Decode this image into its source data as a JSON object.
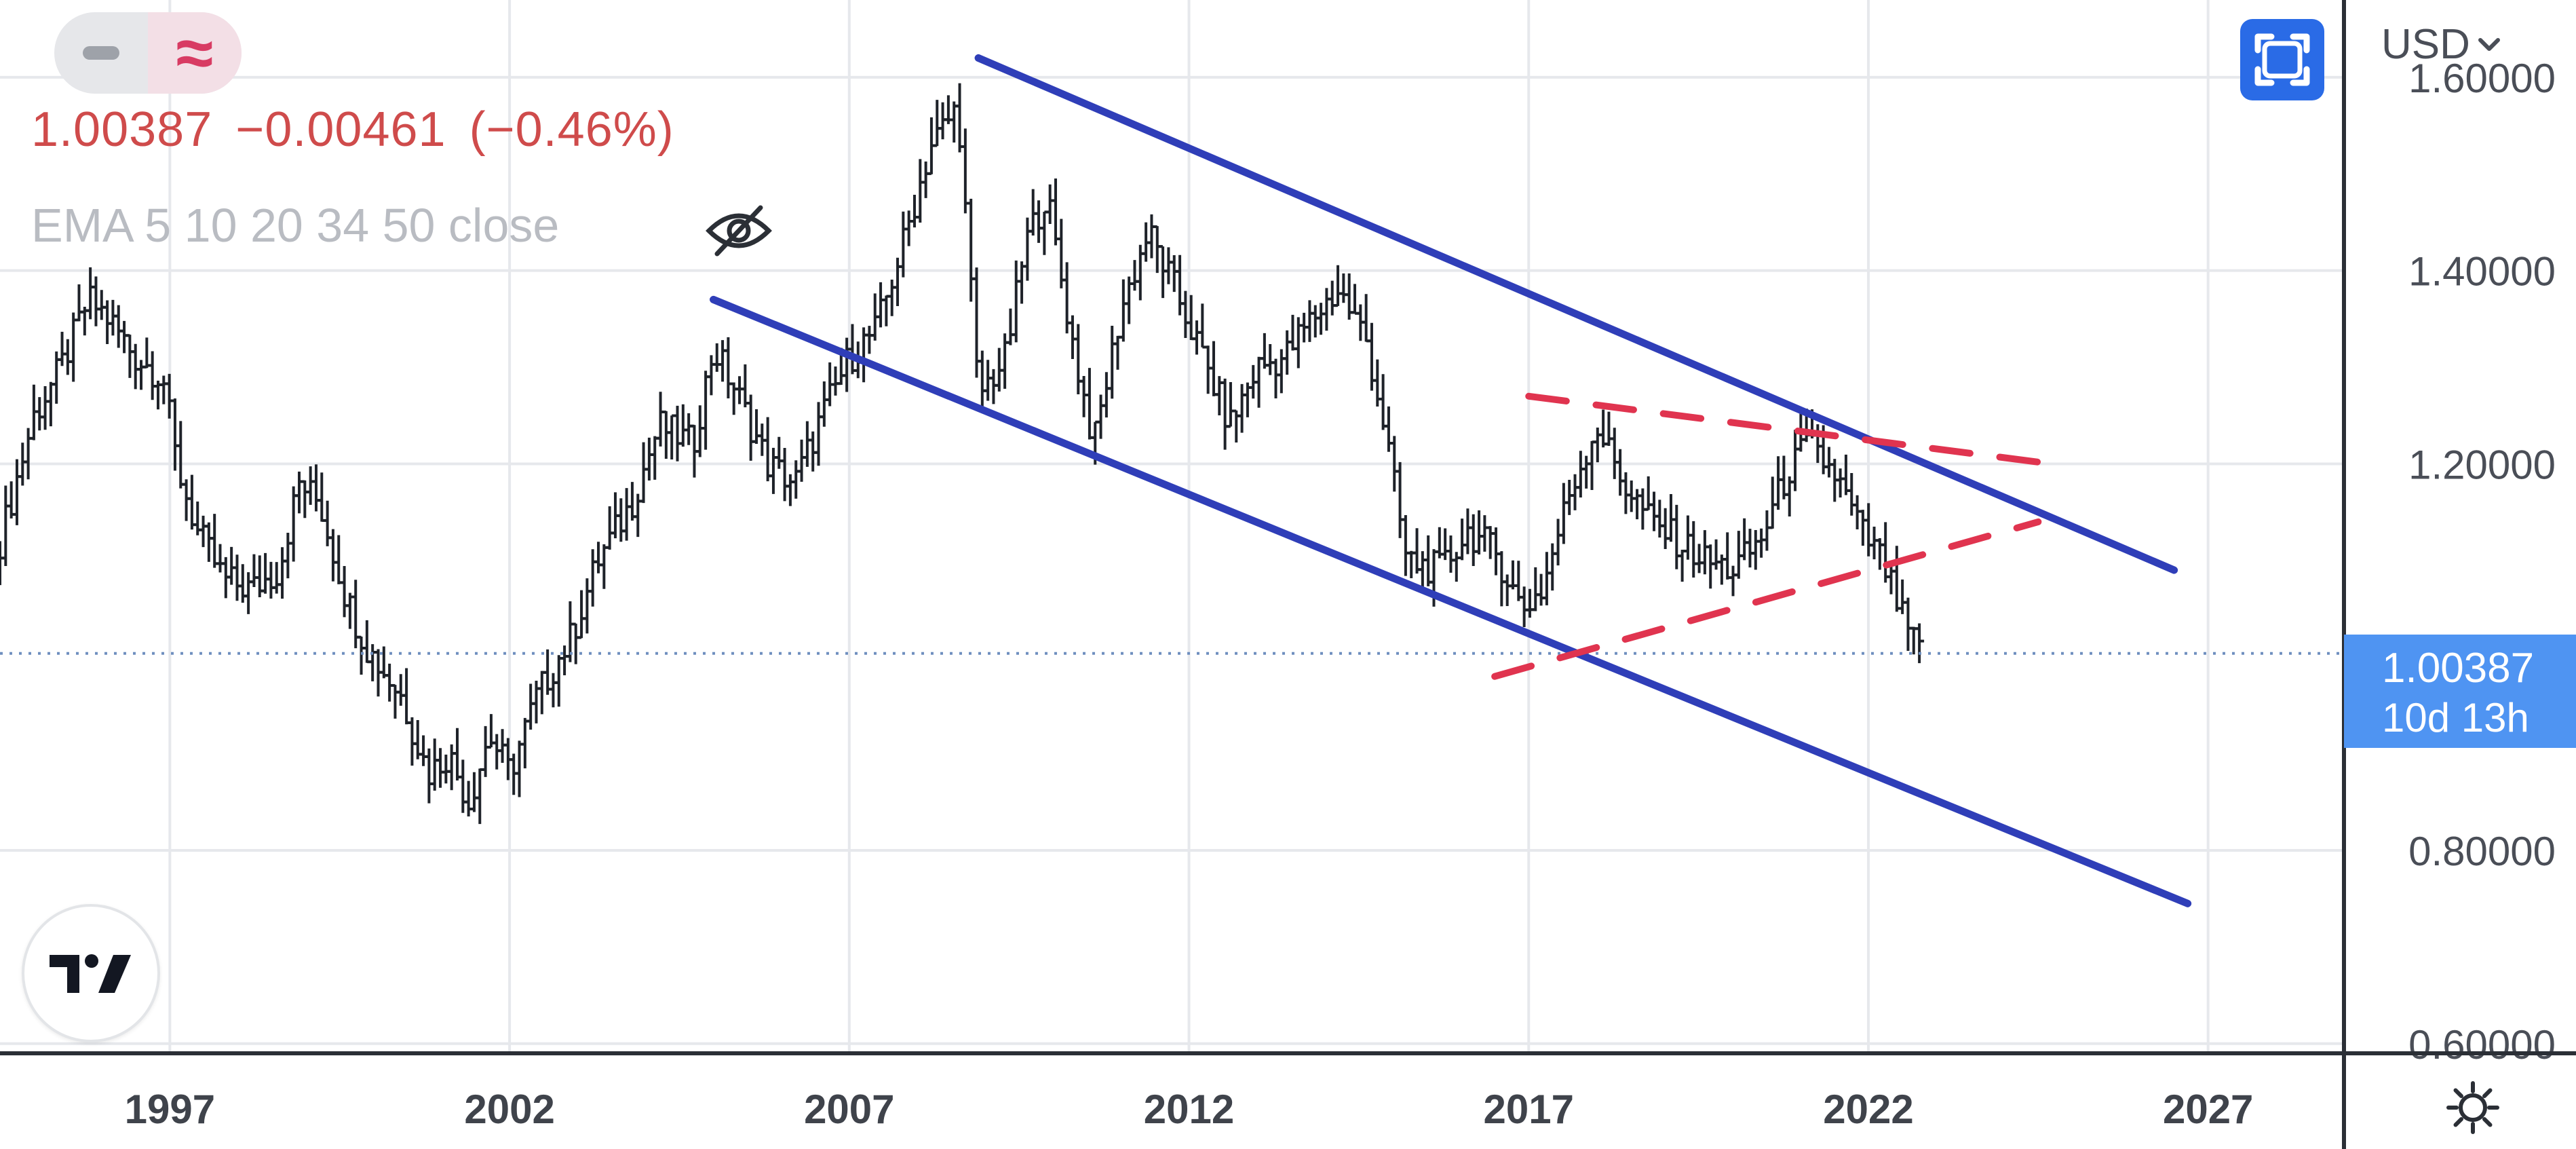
{
  "toolbar": {
    "toggle_minus_icon": "minus-icon",
    "toggle_wave_icon": "approx-wave-icon",
    "wave_glyph": "≈",
    "fullscreen_icon": "fullscreen-icon",
    "currency": "USD",
    "currency_icon": "chevron-down-icon"
  },
  "legend": {
    "price": "1.00387",
    "change": "−0.00461",
    "change_pct": "(−0.46%)",
    "indicator": "EMA 5 10 20 34 50 close",
    "visibility_icon": "eye-off-icon"
  },
  "price_badge": {
    "value": "1.00387",
    "countdown": "10d 13h"
  },
  "logo": {
    "icon": "tradingview-logo-icon",
    "text": "TV"
  },
  "settings_icon": "gear-icon",
  "colors": {
    "down": "#cf4b4b",
    "accent": "#2a6be6",
    "channel": "#2f3eb8",
    "triangle": "#e0344f",
    "badge": "#4f94f2",
    "muted_text": "#b9bcc2"
  },
  "chart_data": {
    "type": "ohlc",
    "instrument_quote": "USD",
    "x_axis": {
      "range": [
        1994.5,
        2029.0
      ],
      "ticks": [
        "1997",
        "2002",
        "2007",
        "2012",
        "2017",
        "2022",
        "2027"
      ]
    },
    "y_axis": {
      "range": [
        0.59,
        1.68
      ],
      "ticks": [
        "0.60000",
        "0.80000",
        "1.00000",
        "1.20000",
        "1.40000",
        "1.60000"
      ],
      "position": "right"
    },
    "grid": true,
    "last_price": 1.00387,
    "last_price_line": "dotted",
    "price_path": [
      [
        1994.5,
        1.12
      ],
      [
        1995.0,
        1.25
      ],
      [
        1995.4,
        1.3
      ],
      [
        1995.8,
        1.37
      ],
      [
        1996.1,
        1.35
      ],
      [
        1996.5,
        1.31
      ],
      [
        1996.9,
        1.29
      ],
      [
        1997.1,
        1.2
      ],
      [
        1997.4,
        1.13
      ],
      [
        1997.8,
        1.08
      ],
      [
        1998.2,
        1.07
      ],
      [
        1998.6,
        1.09
      ],
      [
        1998.9,
        1.18
      ],
      [
        1999.2,
        1.16
      ],
      [
        1999.6,
        1.06
      ],
      [
        1999.9,
        1.01
      ],
      [
        2000.4,
        0.96
      ],
      [
        2000.8,
        0.88
      ],
      [
        2001.1,
        0.9
      ],
      [
        2001.4,
        0.85
      ],
      [
        2001.7,
        0.92
      ],
      [
        2002.0,
        0.88
      ],
      [
        2002.4,
        0.96
      ],
      [
        2002.9,
        1.02
      ],
      [
        2003.3,
        1.1
      ],
      [
        2003.8,
        1.16
      ],
      [
        2004.2,
        1.24
      ],
      [
        2004.7,
        1.22
      ],
      [
        2005.0,
        1.32
      ],
      [
        2005.3,
        1.28
      ],
      [
        2005.8,
        1.2
      ],
      [
        2006.2,
        1.18
      ],
      [
        2006.6,
        1.25
      ],
      [
        2007.0,
        1.31
      ],
      [
        2007.4,
        1.34
      ],
      [
        2007.8,
        1.43
      ],
      [
        2008.2,
        1.53
      ],
      [
        2008.6,
        1.57
      ],
      [
        2008.9,
        1.27
      ],
      [
        2009.3,
        1.31
      ],
      [
        2009.6,
        1.43
      ],
      [
        2009.9,
        1.48
      ],
      [
        2010.3,
        1.32
      ],
      [
        2010.6,
        1.22
      ],
      [
        2011.0,
        1.36
      ],
      [
        2011.4,
        1.44
      ],
      [
        2011.8,
        1.38
      ],
      [
        2012.2,
        1.31
      ],
      [
        2012.6,
        1.24
      ],
      [
        2013.0,
        1.3
      ],
      [
        2013.4,
        1.31
      ],
      [
        2013.8,
        1.35
      ],
      [
        2014.2,
        1.38
      ],
      [
        2014.6,
        1.33
      ],
      [
        2014.9,
        1.23
      ],
      [
        2015.2,
        1.1
      ],
      [
        2015.7,
        1.09
      ],
      [
        2016.1,
        1.13
      ],
      [
        2016.5,
        1.11
      ],
      [
        2016.9,
        1.05
      ],
      [
        2017.2,
        1.07
      ],
      [
        2017.6,
        1.17
      ],
      [
        2018.0,
        1.24
      ],
      [
        2018.4,
        1.18
      ],
      [
        2018.8,
        1.14
      ],
      [
        2019.2,
        1.12
      ],
      [
        2019.6,
        1.1
      ],
      [
        2020.0,
        1.09
      ],
      [
        2020.4,
        1.12
      ],
      [
        2020.8,
        1.19
      ],
      [
        2021.1,
        1.22
      ],
      [
        2021.5,
        1.19
      ],
      [
        2021.9,
        1.13
      ],
      [
        2022.2,
        1.1
      ],
      [
        2022.5,
        1.04
      ],
      [
        2022.75,
        1.004
      ]
    ],
    "annotations": [
      {
        "type": "trendline",
        "style": "solid",
        "color": "#2f3eb8",
        "points": [
          [
            2008.9,
            1.62
          ],
          [
            2026.5,
            1.09
          ]
        ]
      },
      {
        "type": "trendline",
        "style": "solid",
        "color": "#2f3eb8",
        "points": [
          [
            2005.0,
            1.37
          ],
          [
            2026.7,
            0.745
          ]
        ]
      },
      {
        "type": "trendline",
        "style": "dashed",
        "color": "#e0344f",
        "points": [
          [
            2017.0,
            1.27
          ],
          [
            2024.7,
            1.2
          ]
        ]
      },
      {
        "type": "trendline",
        "style": "dashed",
        "color": "#e0344f",
        "points": [
          [
            2016.5,
            0.98
          ],
          [
            2024.5,
            1.14
          ]
        ]
      }
    ]
  }
}
